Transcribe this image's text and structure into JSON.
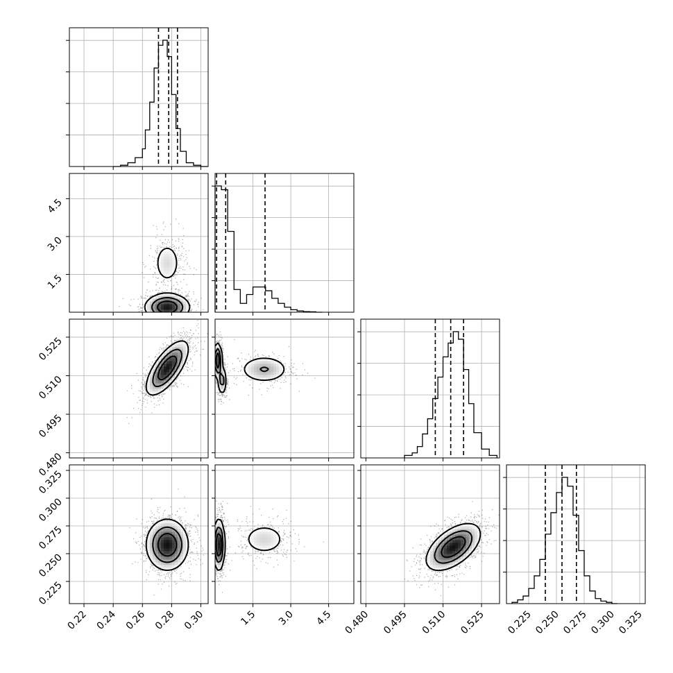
{
  "chart_data": {
    "type": "corner",
    "grid": true,
    "parameters": [
      {
        "range": [
          0.21,
          0.305
        ],
        "ticks": [
          0.22,
          0.24,
          0.26,
          0.28,
          0.3
        ],
        "tick_labels": [
          "0.22",
          "0.24",
          "0.26",
          "0.28",
          "0.30"
        ],
        "quantiles": [
          0.271,
          0.278,
          0.284
        ],
        "hist_x": [
          0.24,
          0.245,
          0.25,
          0.255,
          0.26,
          0.262,
          0.265,
          0.268,
          0.271,
          0.274,
          0.277,
          0.28,
          0.283,
          0.286,
          0.29,
          0.295,
          0.3
        ],
        "hist_counts": [
          0.0,
          0.01,
          0.03,
          0.07,
          0.14,
          0.29,
          0.51,
          0.78,
          0.96,
          1.0,
          0.87,
          0.57,
          0.3,
          0.12,
          0.03,
          0.01,
          0.0
        ]
      },
      {
        "range": [
          0.0,
          5.5
        ],
        "ticks": [
          1.5,
          3.0,
          4.5
        ],
        "tick_labels": [
          "1.5",
          "3.0",
          "4.5"
        ],
        "quantiles": [
          0.06,
          0.42,
          1.98
        ],
        "hist_x": [
          0.0,
          0.25,
          0.5,
          0.75,
          1.0,
          1.25,
          1.5,
          1.75,
          2.0,
          2.25,
          2.5,
          2.75,
          3.0,
          3.25,
          3.5,
          3.75,
          4.0
        ],
        "hist_counts": [
          1.0,
          0.97,
          0.64,
          0.18,
          0.07,
          0.14,
          0.2,
          0.2,
          0.17,
          0.11,
          0.07,
          0.04,
          0.02,
          0.01,
          0.005,
          0.003,
          0.0
        ]
      },
      {
        "range": [
          0.478,
          0.532
        ],
        "ticks": [
          0.48,
          0.495,
          0.51,
          0.525
        ],
        "tick_labels": [
          "0.480",
          "0.495",
          "0.510",
          "0.525"
        ],
        "quantiles": [
          0.507,
          0.513,
          0.518
        ],
        "hist_x": [
          0.495,
          0.498,
          0.5,
          0.502,
          0.504,
          0.506,
          0.508,
          0.51,
          0.512,
          0.514,
          0.516,
          0.518,
          0.52,
          0.522,
          0.525,
          0.528
        ],
        "hist_counts": [
          0.02,
          0.04,
          0.09,
          0.19,
          0.31,
          0.47,
          0.64,
          0.8,
          0.91,
          1.0,
          0.94,
          0.7,
          0.43,
          0.2,
          0.07,
          0.02
        ]
      },
      {
        "range": [
          0.205,
          0.33
        ],
        "ticks": [
          0.225,
          0.25,
          0.275,
          0.3,
          0.325
        ],
        "tick_labels": [
          "0.225",
          "0.250",
          "0.275",
          "0.300",
          "0.325"
        ],
        "quantiles": [
          0.24,
          0.255,
          0.268
        ],
        "hist_x": [
          0.21,
          0.215,
          0.22,
          0.225,
          0.23,
          0.235,
          0.24,
          0.245,
          0.25,
          0.255,
          0.26,
          0.265,
          0.27,
          0.275,
          0.28,
          0.285,
          0.29,
          0.295,
          0.3
        ],
        "hist_counts": [
          0.01,
          0.03,
          0.06,
          0.12,
          0.22,
          0.35,
          0.55,
          0.72,
          0.88,
          1.0,
          0.93,
          0.7,
          0.42,
          0.22,
          0.1,
          0.04,
          0.02,
          0.01,
          0.0
        ]
      }
    ],
    "y_axis_labels": {
      "1": [
        "1.5",
        "3.0",
        "4.5"
      ],
      "2": [
        "0.480",
        "0.495",
        "0.510",
        "0.525"
      ],
      "3": [
        "0.225",
        "0.250",
        "0.275",
        "0.300",
        "0.325"
      ]
    },
    "pairs": [
      {
        "x": 0,
        "y": 1,
        "modes": [
          {
            "center": [
              0.277,
              0.2
            ],
            "sd": [
              0.008,
              0.28
            ],
            "corr": 0.0,
            "weight": 0.78
          },
          {
            "center": [
              0.277,
              1.95
            ],
            "sd": [
              0.006,
              0.55
            ],
            "corr": 0.0,
            "weight": 0.22
          }
        ]
      },
      {
        "x": 0,
        "y": 2,
        "modes": [
          {
            "center": [
              0.277,
              0.513
            ],
            "sd": [
              0.0075,
              0.0055
            ],
            "corr": 0.7,
            "weight": 1.0
          }
        ]
      },
      {
        "x": 0,
        "y": 3,
        "modes": [
          {
            "center": [
              0.277,
              0.258
            ],
            "sd": [
              0.0075,
              0.012
            ],
            "corr": 0.0,
            "weight": 1.0
          }
        ]
      },
      {
        "x": 1,
        "y": 2,
        "modes": [
          {
            "center": [
              0.1,
              0.516
            ],
            "sd": [
              0.09,
              0.0035
            ],
            "corr": 0.0,
            "weight": 0.5
          },
          {
            "center": [
              0.28,
              0.508
            ],
            "sd": [
              0.09,
              0.003
            ],
            "corr": 0.0,
            "weight": 0.28
          },
          {
            "center": [
              1.95,
              0.5125
            ],
            "sd": [
              0.55,
              0.003
            ],
            "corr": 0.0,
            "weight": 0.22
          }
        ]
      },
      {
        "x": 1,
        "y": 3,
        "modes": [
          {
            "center": [
              0.15,
              0.258
            ],
            "sd": [
              0.12,
              0.012
            ],
            "corr": 0.0,
            "weight": 0.78
          },
          {
            "center": [
              1.95,
              0.263
            ],
            "sd": [
              0.55,
              0.009
            ],
            "corr": 0.0,
            "weight": 0.22
          }
        ]
      },
      {
        "x": 2,
        "y": 3,
        "modes": [
          {
            "center": [
              0.514,
              0.256
            ],
            "sd": [
              0.0055,
              0.011
            ],
            "corr": 0.55,
            "weight": 1.0
          }
        ]
      }
    ]
  }
}
